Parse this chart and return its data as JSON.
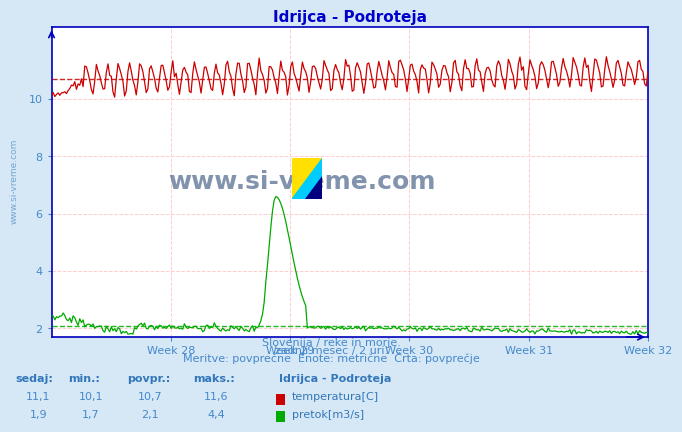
{
  "title": "Idrijca - Podroteja",
  "title_color": "#0000cc",
  "bg_color": "#d6e8f5",
  "plot_bg_color": "#ffffff",
  "grid_color_h": "#ffcccc",
  "grid_color_v": "#ffcccc",
  "axis_color": "#0000bb",
  "text_color": "#3377bb",
  "label_color": "#4488cc",
  "week_labels": [
    "Week 28",
    "Week 29",
    "Week 30",
    "Week 31",
    "Week 32"
  ],
  "ylim": [
    1.7,
    12.5
  ],
  "yticks": [
    2,
    4,
    6,
    8,
    10
  ],
  "temp_color": "#cc0000",
  "flow_color": "#00aa00",
  "temp_avg": 10.7,
  "flow_avg": 2.1,
  "temp_min": 10.1,
  "temp_max": 11.6,
  "temp_sedaj": "11,1",
  "flow_min": "1,7",
  "flow_max": "4,4",
  "flow_sedaj": "1,9",
  "temp_min_s": "10,1",
  "temp_avg_s": "10,7",
  "temp_max_s": "11,6",
  "flow_avg_s": "2,1",
  "subtitle1": "Slovenija / reke in morje.",
  "subtitle2": "zadnji mesec / 2 uri.",
  "subtitle3": "Meritve: povprečne  Enote: metrične  Črta: povprečje",
  "legend_title": "Idrijca - Podroteja",
  "legend_temp": "temperatura[C]",
  "legend_flow": "pretok[m3/s]",
  "table_headers": [
    "sedaj:",
    "min.:",
    "povpr.:",
    "maks.:"
  ],
  "watermark": "www.si-vreme.com",
  "n_points": 360,
  "logo_colors": [
    "#FFE000",
    "#00CCFF",
    "#000080"
  ]
}
